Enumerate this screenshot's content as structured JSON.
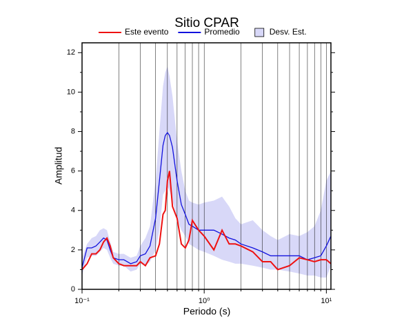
{
  "chart_data": {
    "type": "line",
    "title": "Sitio CPAR",
    "xlabel": "Periodo (s)",
    "ylabel": "Amplitud",
    "log_x": true,
    "grid": "x",
    "xlim": [
      0.1,
      10.9
    ],
    "ylim": [
      0,
      12.5
    ],
    "xticks": [
      {
        "value": 0.1,
        "label": "10⁻¹"
      },
      {
        "value": 1,
        "label": "10⁰"
      },
      {
        "value": 10,
        "label": "10¹"
      }
    ],
    "xminor": [
      0.2,
      0.3,
      0.4,
      0.5,
      0.6,
      0.7,
      0.8,
      0.9,
      2,
      3,
      4,
      5,
      6,
      7,
      8,
      9
    ],
    "yticks": [
      0,
      2,
      4,
      6,
      8,
      10,
      12
    ],
    "yminor": [
      1,
      3,
      5,
      7,
      9,
      11
    ],
    "x": [
      0.1,
      0.11,
      0.12,
      0.13,
      0.14,
      0.15,
      0.16,
      0.17,
      0.18,
      0.2,
      0.22,
      0.25,
      0.28,
      0.3,
      0.33,
      0.36,
      0.4,
      0.43,
      0.46,
      0.48,
      0.5,
      0.52,
      0.55,
      0.6,
      0.65,
      0.7,
      0.75,
      0.8,
      0.9,
      1.0,
      1.2,
      1.4,
      1.6,
      1.8,
      2.0,
      2.5,
      3,
      3.5,
      4,
      5,
      6,
      7,
      8,
      9,
      10,
      10.9
    ],
    "band": {
      "name": "Desv. Est.",
      "color": "#d8d8f8",
      "lower": [
        0.7,
        1.6,
        1.7,
        1.7,
        1.9,
        2.1,
        2.0,
        1.6,
        1.3,
        1.2,
        1.2,
        0.9,
        1.0,
        1.3,
        1.2,
        1.4,
        2.0,
        3.0,
        4.8,
        5.0,
        5.2,
        5.0,
        4.5,
        3.6,
        3.0,
        2.7,
        2.3,
        2.2,
        2.0,
        1.9,
        1.7,
        1.5,
        1.4,
        1.3,
        1.3,
        1.2,
        1.1,
        1.0,
        1.0,
        0.9,
        0.8,
        0.7,
        0.7,
        0.6,
        0.6,
        1.2
      ],
      "upper": [
        1.6,
        2.3,
        2.6,
        2.7,
        3.0,
        3.1,
        3.0,
        2.4,
        1.9,
        1.8,
        1.8,
        1.6,
        1.7,
        2.2,
        2.6,
        3.2,
        5.5,
        8.0,
        10.3,
        11.0,
        11.3,
        10.8,
        9.8,
        7.5,
        6.0,
        5.0,
        4.5,
        4.4,
        4.3,
        4.4,
        4.5,
        4.7,
        4.2,
        3.6,
        3.3,
        3.5,
        3.0,
        2.7,
        2.5,
        2.8,
        2.7,
        2.9,
        3.2,
        4.0,
        5.5,
        6.0
      ]
    },
    "series": [
      {
        "name": "Este evento",
        "color": "#ee1111",
        "values": [
          1.0,
          1.3,
          1.8,
          1.8,
          2.0,
          2.4,
          2.6,
          2.2,
          1.6,
          1.3,
          1.2,
          1.2,
          1.2,
          1.4,
          1.2,
          1.6,
          1.7,
          2.3,
          3.8,
          4.0,
          5.5,
          6.0,
          4.2,
          3.6,
          2.3,
          2.1,
          2.5,
          3.5,
          3.0,
          2.7,
          2.0,
          3.0,
          2.3,
          2.3,
          2.2,
          1.9,
          1.4,
          1.4,
          1.0,
          1.2,
          1.6,
          1.5,
          1.4,
          1.5,
          1.5,
          1.3
        ]
      },
      {
        "name": "Promedio",
        "color": "#1111dd",
        "values": [
          1.1,
          2.1,
          2.1,
          2.2,
          2.4,
          2.6,
          2.5,
          2.0,
          1.6,
          1.5,
          1.5,
          1.3,
          1.4,
          1.7,
          1.8,
          2.2,
          3.6,
          5.5,
          7.3,
          7.8,
          7.95,
          7.8,
          7.2,
          5.5,
          4.3,
          3.8,
          3.3,
          3.2,
          3.0,
          3.0,
          3.0,
          2.8,
          2.6,
          2.5,
          2.3,
          2.1,
          1.9,
          1.7,
          1.7,
          1.7,
          1.7,
          1.5,
          1.6,
          1.7,
          2.2,
          2.7
        ]
      }
    ]
  }
}
